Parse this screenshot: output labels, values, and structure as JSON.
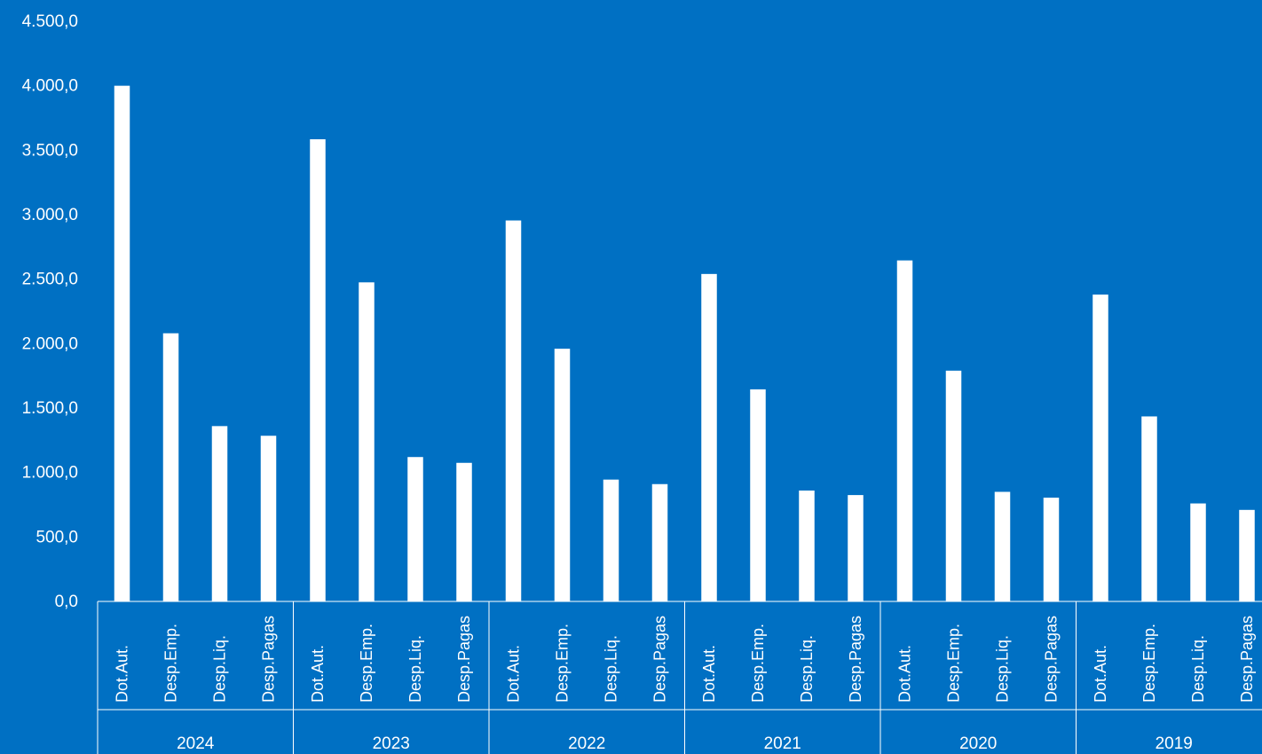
{
  "chart_data": {
    "type": "bar",
    "colors": {
      "background": "#0070C3",
      "bar": "#FFFFFF",
      "axis": "#FFFFFF",
      "text": "#FFFFFF"
    },
    "grid": false,
    "legend": "none",
    "ylim": [
      0,
      4500
    ],
    "y_ticks": [
      "0,0",
      "500,0",
      "1.000,0",
      "1.500,0",
      "2.000,0",
      "2.500,0",
      "3.000,0",
      "3.500,0",
      "4.000,0",
      "4.500,0"
    ],
    "groups": [
      {
        "label": "2024",
        "bars": [
          {
            "label": "Dot.Aut.",
            "value": 4000
          },
          {
            "label": "Desp.Emp.",
            "value": 2080
          },
          {
            "label": "Desp.Liq.",
            "value": 1360
          },
          {
            "label": "Desp.Pagas",
            "value": 1285
          }
        ]
      },
      {
        "label": "2023",
        "bars": [
          {
            "label": "Dot.Aut.",
            "value": 3585
          },
          {
            "label": "Desp.Emp.",
            "value": 2475
          },
          {
            "label": "Desp.Liq.",
            "value": 1120
          },
          {
            "label": "Desp.Pagas",
            "value": 1075
          }
        ]
      },
      {
        "label": "2022",
        "bars": [
          {
            "label": "Dot.Aut.",
            "value": 2955
          },
          {
            "label": "Desp.Emp.",
            "value": 1960
          },
          {
            "label": "Desp.Liq.",
            "value": 945
          },
          {
            "label": "Desp.Pagas",
            "value": 910
          }
        ]
      },
      {
        "label": "2021",
        "bars": [
          {
            "label": "Dot.Aut.",
            "value": 2540
          },
          {
            "label": "Desp.Emp.",
            "value": 1645
          },
          {
            "label": "Desp.Liq.",
            "value": 860
          },
          {
            "label": "Desp.Pagas",
            "value": 825
          }
        ]
      },
      {
        "label": "2020",
        "bars": [
          {
            "label": "Dot.Aut.",
            "value": 2645
          },
          {
            "label": "Desp.Emp.",
            "value": 1790
          },
          {
            "label": "Desp.Liq.",
            "value": 850
          },
          {
            "label": "Desp.Pagas",
            "value": 805
          }
        ]
      },
      {
        "label": "2019",
        "bars": [
          {
            "label": "Dot.Aut.",
            "value": 2380
          },
          {
            "label": "Desp.Emp.",
            "value": 1435
          },
          {
            "label": "Desp.Liq.",
            "value": 760
          },
          {
            "label": "Desp.Pagas",
            "value": 710
          }
        ]
      }
    ]
  }
}
